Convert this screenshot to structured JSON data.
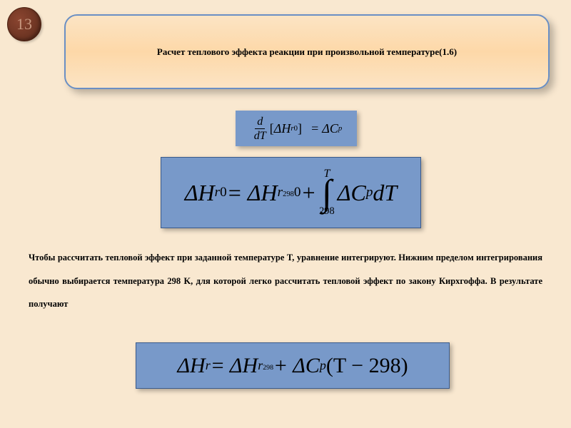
{
  "page_number": "13",
  "header": {
    "title": "Расчет теплового эффекта реакции при произвольной температуре(1.6)"
  },
  "formulas": {
    "f1": {
      "frac_num": "d",
      "frac_den": "dT",
      "lhs_delta": "Δ",
      "lhs_var": "H",
      "lhs_sub": "r",
      "lhs_sup": "0",
      "rhs_delta": "= Δ",
      "rhs_var": "C",
      "rhs_sub": "p"
    },
    "f2": {
      "lhs": "ΔH",
      "lhs_sub": "r",
      "lhs_sup": "0",
      "eq": " = Δ",
      "rhs1": "H",
      "rhs1_sub": "r",
      "rhs1_subnum": "298",
      "rhs1_sup": "0",
      "plus": " + ",
      "int_up": "T",
      "int_lo": "298",
      "integrand1": "ΔC",
      "integrand1_sub": "p",
      "integrand2": "dT"
    },
    "f3": {
      "lhs": "ΔH",
      "lhs_sub": "r",
      "eq": " = Δ",
      "rhs1": "H",
      "rhs1_sub": "r",
      "rhs1_subnum": "298",
      "plus": " + Δ",
      "cp": "C",
      "cp_sub": "p",
      "tail": "(T − 298)"
    }
  },
  "body_text": "Чтобы рассчитать тепловой эффект при заданной температуре T, уравнение интегрируют. Нижним пределом интегрирования обычно выбирается температура 298 K, для которой легко рассчитать тепловой эффект по закону Кирхгоффа. В результате получают",
  "colors": {
    "background": "#f9e8d0",
    "header_border": "#6a8fc4",
    "formula_bg": "#7899c9",
    "page_circle": "#6a3520"
  }
}
